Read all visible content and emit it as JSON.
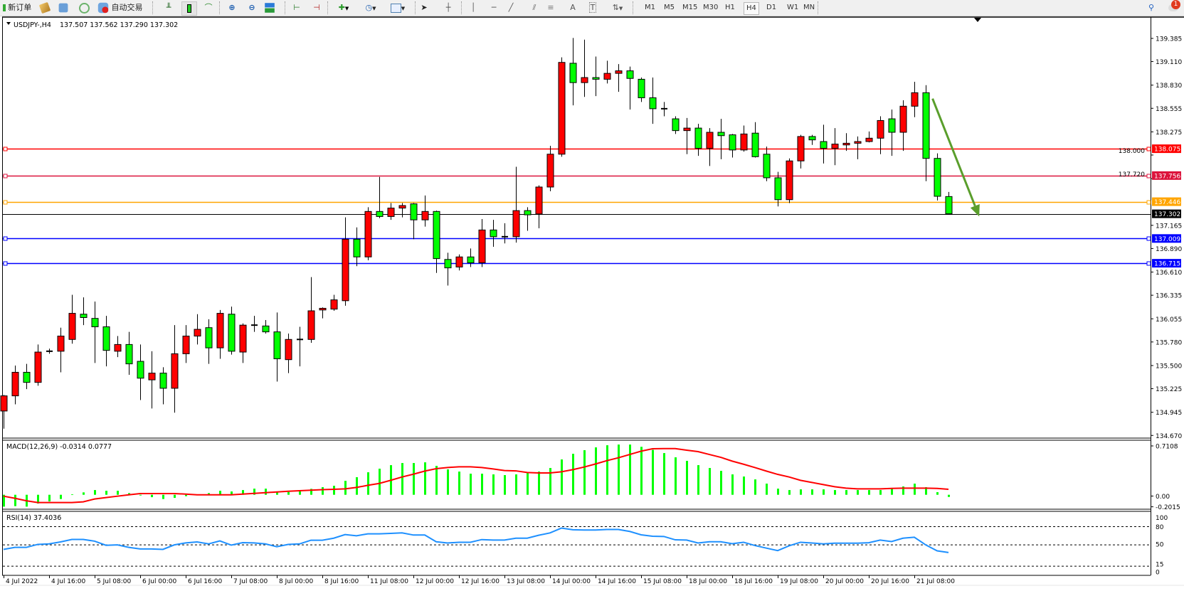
{
  "toolbar": {
    "new_order": "新订单",
    "auto_trading": "自动交易",
    "timeframes": [
      "M1",
      "M5",
      "M15",
      "M30",
      "H1",
      "H4",
      "D1",
      "W1",
      "MN"
    ],
    "selected_timeframe": "H4",
    "notification_count": "1",
    "icons": [
      "new-order-icon",
      "history-icon",
      "navigator-icon",
      "signals-icon",
      "auto-trading-icon",
      "bar-chart-icon",
      "candlestick-icon",
      "line-chart-icon",
      "zoom-in-icon",
      "zoom-out-icon",
      "tile-windows-icon",
      "autoscroll-icon",
      "chart-shift-icon",
      "new-chart-icon",
      "periods-clock-icon",
      "templates-icon",
      "cursor-icon",
      "crosshair-icon",
      "vertical-line-icon",
      "horizontal-line-icon",
      "trendline-icon",
      "equidistant-channel-icon",
      "fibonacci-icon",
      "text-icon",
      "text-label-icon",
      "arrows-icon",
      "search-icon",
      "notification-icon"
    ]
  },
  "chart": {
    "symbol": "USDJPY-,H4",
    "ohlc": "137.507 137.562 137.290 137.302",
    "bid": "137.302",
    "bid_value": 137.302
  },
  "chart_data": [
    {
      "type": "candlestick",
      "title": "USDJPY-,H4",
      "ylim": [
        134.67,
        139.385
      ],
      "bull_color": "#ff0000",
      "bear_color": "#00ff00",
      "price_ticks": [
        "139.385",
        "139.110",
        "138.830",
        "138.555",
        "138.275",
        "138.000",
        "137.720",
        "137.165",
        "136.890",
        "136.610",
        "136.335",
        "136.055",
        "135.780",
        "135.500",
        "135.225",
        "134.945",
        "134.670"
      ],
      "time_labels": [
        "4 Jul 2022",
        "4 Jul 16:00",
        "5 Jul 08:00",
        "6 Jul 00:00",
        "6 Jul 16:00",
        "7 Jul 08:00",
        "8 Jul 00:00",
        "8 Jul 16:00",
        "11 Jul 08:00",
        "12 Jul 00:00",
        "12 Jul 16:00",
        "13 Jul 08:00",
        "14 Jul 00:00",
        "14 Jul 16:00",
        "15 Jul 08:00",
        "18 Jul 00:00",
        "18 Jul 16:00",
        "19 Jul 08:00",
        "20 Jul 00:00",
        "20 Jul 16:00",
        "21 Jul 08:00"
      ],
      "ohlc": [
        [
          134.96,
          135.15,
          134.75,
          135.14
        ],
        [
          135.14,
          135.5,
          135.04,
          135.42
        ],
        [
          135.42,
          135.52,
          135.22,
          135.3
        ],
        [
          135.3,
          135.75,
          135.26,
          135.66
        ],
        [
          135.66,
          135.7,
          135.64,
          135.67
        ],
        [
          135.67,
          135.95,
          135.42,
          135.85
        ],
        [
          135.81,
          136.34,
          135.76,
          136.12
        ],
        [
          136.11,
          136.31,
          135.98,
          136.07
        ],
        [
          136.06,
          136.26,
          135.53,
          135.96
        ],
        [
          135.96,
          136.09,
          135.49,
          135.68
        ],
        [
          135.67,
          135.85,
          135.6,
          135.75
        ],
        [
          135.75,
          135.9,
          135.39,
          135.52
        ],
        [
          135.55,
          135.75,
          135.09,
          135.35
        ],
        [
          135.33,
          135.67,
          134.99,
          135.41
        ],
        [
          135.41,
          135.48,
          135.04,
          135.23
        ],
        [
          135.23,
          135.98,
          134.94,
          135.64
        ],
        [
          135.64,
          135.98,
          135.53,
          135.85
        ],
        [
          135.85,
          136.11,
          135.75,
          135.93
        ],
        [
          135.95,
          136.05,
          135.52,
          135.71
        ],
        [
          135.71,
          136.16,
          135.58,
          136.12
        ],
        [
          136.11,
          136.2,
          135.63,
          135.67
        ],
        [
          135.66,
          136.0,
          135.53,
          135.98
        ],
        [
          135.97,
          136.09,
          135.9,
          135.98
        ],
        [
          135.97,
          136.04,
          135.88,
          135.9
        ],
        [
          135.9,
          136.13,
          135.31,
          135.58
        ],
        [
          135.57,
          135.88,
          135.41,
          135.81
        ],
        [
          135.81,
          135.96,
          135.49,
          135.81
        ],
        [
          135.81,
          136.55,
          135.77,
          136.15
        ],
        [
          136.16,
          136.19,
          136.06,
          136.18
        ],
        [
          136.17,
          136.34,
          136.15,
          136.28
        ],
        [
          136.27,
          137.26,
          136.21,
          137.0
        ],
        [
          137.0,
          137.14,
          136.68,
          136.79
        ],
        [
          136.79,
          137.38,
          136.75,
          137.33
        ],
        [
          137.33,
          137.74,
          137.25,
          137.27
        ],
        [
          137.27,
          137.43,
          137.23,
          137.37
        ],
        [
          137.37,
          137.43,
          137.26,
          137.4
        ],
        [
          137.42,
          137.43,
          137.0,
          137.23
        ],
        [
          137.23,
          137.52,
          137.15,
          137.33
        ],
        [
          137.33,
          137.34,
          136.6,
          136.77
        ],
        [
          136.76,
          136.84,
          136.45,
          136.66
        ],
        [
          136.67,
          136.82,
          136.63,
          136.79
        ],
        [
          136.79,
          136.89,
          136.67,
          136.72
        ],
        [
          136.72,
          137.24,
          136.67,
          137.11
        ],
        [
          137.11,
          137.23,
          136.91,
          137.03
        ],
        [
          137.03,
          137.19,
          136.95,
          137.03
        ],
        [
          137.03,
          137.86,
          136.96,
          137.34
        ],
        [
          137.34,
          137.38,
          137.1,
          137.29
        ],
        [
          137.3,
          137.64,
          137.13,
          137.62
        ],
        [
          137.62,
          138.11,
          137.57,
          138.01
        ],
        [
          138.01,
          139.16,
          137.98,
          139.1
        ],
        [
          139.09,
          139.39,
          138.59,
          138.86
        ],
        [
          138.86,
          139.37,
          138.69,
          138.92
        ],
        [
          138.92,
          139.17,
          138.7,
          138.9
        ],
        [
          138.9,
          139.12,
          138.85,
          138.97
        ],
        [
          138.97,
          139.08,
          138.75,
          139.0
        ],
        [
          139.0,
          139.05,
          138.54,
          138.91
        ],
        [
          138.9,
          138.92,
          138.63,
          138.68
        ],
        [
          138.68,
          138.92,
          138.37,
          138.55
        ],
        [
          138.55,
          138.63,
          138.46,
          138.55
        ],
        [
          138.43,
          138.46,
          138.25,
          138.29
        ],
        [
          138.29,
          138.44,
          138.01,
          138.32
        ],
        [
          138.32,
          138.37,
          137.99,
          138.08
        ],
        [
          138.08,
          138.32,
          137.87,
          138.27
        ],
        [
          138.27,
          138.43,
          137.95,
          138.23
        ],
        [
          138.24,
          138.25,
          137.97,
          138.06
        ],
        [
          138.06,
          138.35,
          138.04,
          138.25
        ],
        [
          138.26,
          138.39,
          137.97,
          137.98
        ],
        [
          138.01,
          138.1,
          137.69,
          137.73
        ],
        [
          137.73,
          137.8,
          137.39,
          137.47
        ],
        [
          137.47,
          137.96,
          137.43,
          137.93
        ],
        [
          137.93,
          138.24,
          137.84,
          138.22
        ],
        [
          138.22,
          138.24,
          138.12,
          138.18
        ],
        [
          138.16,
          138.36,
          137.9,
          138.08
        ],
        [
          138.08,
          138.32,
          137.88,
          138.13
        ],
        [
          138.12,
          138.26,
          138.05,
          138.14
        ],
        [
          138.14,
          138.22,
          137.95,
          138.16
        ],
        [
          138.16,
          138.28,
          138.15,
          138.2
        ],
        [
          138.2,
          138.46,
          138.01,
          138.41
        ],
        [
          138.43,
          138.54,
          137.99,
          138.27
        ],
        [
          138.27,
          138.65,
          138.05,
          138.58
        ],
        [
          138.58,
          138.87,
          138.45,
          138.74
        ],
        [
          138.74,
          138.83,
          137.69,
          137.96
        ],
        [
          137.96,
          138.02,
          137.46,
          137.51
        ],
        [
          137.507,
          137.562,
          137.29,
          137.302
        ]
      ],
      "horizontal_lines": [
        {
          "price": 138.075,
          "label": "138.075",
          "color": "#ff0000"
        },
        {
          "price": 137.756,
          "label": "137.756",
          "color": "#dc143c"
        },
        {
          "price": 137.446,
          "label": "137.446",
          "color": "#ffa500"
        },
        {
          "price": 137.009,
          "label": "137.009",
          "color": "#0000ff"
        },
        {
          "price": 136.715,
          "label": "136.715",
          "color": "#0000ff"
        }
      ],
      "arrow": {
        "color": "#5a9e2c",
        "from": {
          "bar": 81.6,
          "price": 138.67
        },
        "to": {
          "bar": 85.7,
          "price": 137.27
        }
      }
    },
    {
      "type": "bar+line",
      "title": "MACD(12,26,9) -0.0314 0.0777",
      "ylim": [
        -0.2015,
        0.7108
      ],
      "ticks": [
        "0.7108",
        "0.00",
        "-0.2015"
      ],
      "histogram_color": "#00ff00",
      "signal_color": "#ff0000",
      "macd": [
        -0.168,
        -0.161,
        -0.168,
        -0.124,
        -0.094,
        -0.06,
        0.007,
        0.034,
        0.067,
        0.057,
        0.057,
        0.024,
        -0.01,
        -0.034,
        -0.06,
        -0.044,
        -0.02,
        0.0,
        0.024,
        0.057,
        0.047,
        0.067,
        0.087,
        0.087,
        0.034,
        0.04,
        0.05,
        0.084,
        0.108,
        0.128,
        0.198,
        0.249,
        0.319,
        0.37,
        0.42,
        0.45,
        0.45,
        0.46,
        0.41,
        0.36,
        0.329,
        0.299,
        0.299,
        0.289,
        0.279,
        0.289,
        0.309,
        0.329,
        0.38,
        0.501,
        0.581,
        0.632,
        0.672,
        0.702,
        0.712,
        0.712,
        0.68,
        0.637,
        0.591,
        0.531,
        0.481,
        0.42,
        0.38,
        0.339,
        0.289,
        0.259,
        0.218,
        0.158,
        0.087,
        0.067,
        0.077,
        0.077,
        0.077,
        0.067,
        0.067,
        0.067,
        0.067,
        0.067,
        0.097,
        0.118,
        0.158,
        0.108,
        0.037,
        -0.031
      ],
      "signal": [
        -0.02,
        -0.05,
        -0.085,
        -0.11,
        -0.11,
        -0.11,
        -0.11,
        -0.1,
        -0.06,
        -0.04,
        -0.02,
        0.0,
        0.017,
        0.017,
        0.017,
        0.017,
        0.01,
        0.0,
        0.0,
        0.0,
        0.0,
        0.01,
        0.02,
        0.03,
        0.04,
        0.05,
        0.057,
        0.065,
        0.072,
        0.078,
        0.084,
        0.104,
        0.134,
        0.161,
        0.205,
        0.252,
        0.292,
        0.336,
        0.37,
        0.386,
        0.397,
        0.397,
        0.386,
        0.366,
        0.343,
        0.339,
        0.316,
        0.309,
        0.309,
        0.326,
        0.356,
        0.393,
        0.437,
        0.484,
        0.524,
        0.571,
        0.618,
        0.652,
        0.655,
        0.655,
        0.632,
        0.612,
        0.571,
        0.531,
        0.477,
        0.433,
        0.386,
        0.336,
        0.289,
        0.252,
        0.205,
        0.175,
        0.144,
        0.114,
        0.094,
        0.084,
        0.084,
        0.084,
        0.09,
        0.094,
        0.094,
        0.094,
        0.09,
        0.078
      ]
    },
    {
      "type": "line",
      "title": "RSI(14) 37.4036",
      "ylim": [
        0,
        100
      ],
      "ticks": [
        "100",
        "80",
        "50",
        "15",
        "0"
      ],
      "levels": [
        80,
        50,
        15
      ],
      "line_color": "#1e90ff",
      "values": [
        42.6,
        45.9,
        45.9,
        50.8,
        51.6,
        54.9,
        58.9,
        58.9,
        56.1,
        49.3,
        50.0,
        45.9,
        43.3,
        43.3,
        42.6,
        50.0,
        53.3,
        54.9,
        51.6,
        56.5,
        49.6,
        53.7,
        53.3,
        51.6,
        47.0,
        50.8,
        51.6,
        57.7,
        57.7,
        61.0,
        67.0,
        65.0,
        68.1,
        68.1,
        68.9,
        69.7,
        66.2,
        66.2,
        55.1,
        53.1,
        54.3,
        54.3,
        58.7,
        57.9,
        57.9,
        61.0,
        61.0,
        65.8,
        69.7,
        77.6,
        74.9,
        74.5,
        74.5,
        75.3,
        75.3,
        72.1,
        66.6,
        64.2,
        63.8,
        58.3,
        57.9,
        53.1,
        55.1,
        55.1,
        52.0,
        54.3,
        48.9,
        44.7,
        40.6,
        48.5,
        54.3,
        53.1,
        51.6,
        52.8,
        52.8,
        52.8,
        53.5,
        57.9,
        55.5,
        61.0,
        62.6,
        50.0,
        40.2,
        37.4
      ]
    }
  ]
}
